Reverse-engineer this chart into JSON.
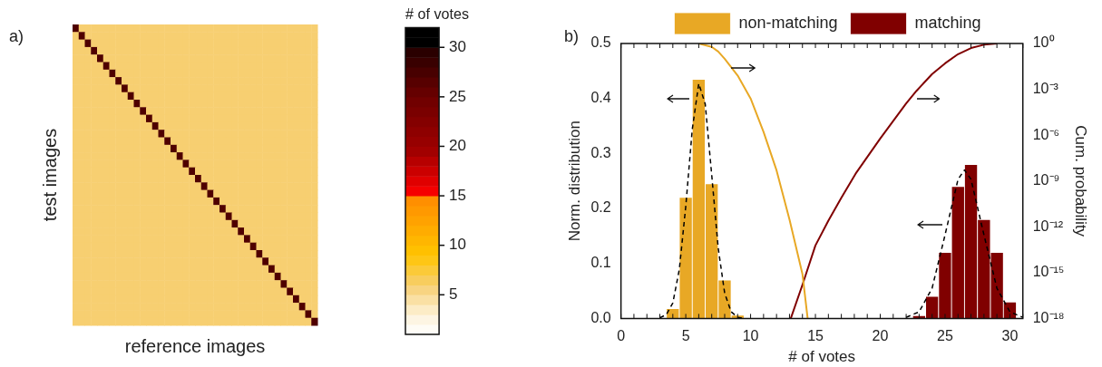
{
  "chart_data": [
    {
      "type": "heatmap",
      "title": "a)",
      "xlabel": "reference images",
      "ylabel": "test images",
      "clabel": "# of votes",
      "tick_labels": false,
      "categories": [
        null,
        null,
        null,
        null,
        null,
        null,
        null,
        null,
        null,
        null,
        null,
        null,
        null,
        null,
        null,
        null,
        null,
        null,
        null,
        null,
        null,
        null,
        null,
        null,
        null,
        null,
        null,
        null,
        null,
        null,
        null,
        null,
        null,
        null,
        null,
        null,
        null,
        null,
        null,
        null
      ],
      "y_categories": [
        null,
        null,
        null,
        null,
        null,
        null,
        null,
        null,
        null,
        null,
        null,
        null,
        null,
        null,
        null,
        null,
        null,
        null,
        null,
        null,
        null,
        null,
        null,
        null,
        null,
        null,
        null,
        null,
        null,
        null,
        null,
        null,
        null,
        null,
        null,
        null,
        null,
        null,
        null,
        null
      ],
      "cells": [
        [
          27,
          6,
          6,
          6,
          6,
          6,
          6,
          6,
          6,
          6,
          6,
          6,
          6,
          6,
          6,
          6,
          6,
          6,
          6,
          6,
          6,
          6,
          6,
          6,
          6,
          6,
          6,
          6,
          6,
          6,
          6,
          6,
          6,
          6,
          6,
          6,
          6,
          6,
          6,
          6
        ],
        [
          6,
          27,
          6,
          6,
          6,
          6,
          6,
          6,
          6,
          6,
          6,
          6,
          6,
          6,
          6,
          6,
          6,
          6,
          6,
          6,
          6,
          6,
          6,
          6,
          6,
          6,
          6,
          6,
          6,
          6,
          6,
          6,
          6,
          6,
          6,
          6,
          6,
          6,
          6,
          6
        ],
        [
          6,
          6,
          27,
          6,
          6,
          6,
          6,
          6,
          6,
          6,
          6,
          6,
          6,
          6,
          6,
          6,
          6,
          6,
          6,
          6,
          6,
          6,
          6,
          6,
          6,
          6,
          6,
          6,
          6,
          6,
          6,
          6,
          6,
          6,
          6,
          6,
          6,
          6,
          6,
          6
        ],
        [
          6,
          6,
          6,
          27,
          6,
          6,
          6,
          6,
          6,
          6,
          6,
          6,
          6,
          6,
          6,
          6,
          6,
          6,
          6,
          6,
          6,
          6,
          6,
          6,
          6,
          6,
          6,
          6,
          6,
          6,
          6,
          6,
          6,
          6,
          6,
          6,
          6,
          6,
          6,
          6
        ],
        [
          6,
          6,
          6,
          6,
          27,
          6,
          6,
          6,
          6,
          6,
          6,
          6,
          6,
          6,
          6,
          6,
          6,
          6,
          6,
          6,
          6,
          6,
          6,
          6,
          6,
          6,
          6,
          6,
          6,
          6,
          6,
          6,
          6,
          6,
          6,
          6,
          6,
          6,
          6,
          6
        ],
        [
          6,
          6,
          6,
          6,
          6,
          27,
          6,
          6,
          6,
          6,
          6,
          6,
          6,
          6,
          6,
          6,
          6,
          6,
          6,
          6,
          6,
          6,
          6,
          6,
          6,
          6,
          6,
          6,
          6,
          6,
          6,
          6,
          6,
          6,
          6,
          6,
          6,
          6,
          6,
          6
        ],
        [
          6,
          6,
          6,
          6,
          6,
          6,
          27,
          6,
          6,
          6,
          6,
          6,
          6,
          6,
          6,
          6,
          6,
          6,
          6,
          6,
          6,
          6,
          6,
          6,
          6,
          6,
          6,
          6,
          6,
          6,
          6,
          6,
          6,
          6,
          6,
          6,
          6,
          6,
          6,
          6
        ],
        [
          6,
          6,
          6,
          6,
          6,
          6,
          6,
          27,
          6,
          6,
          6,
          6,
          6,
          6,
          6,
          6,
          6,
          6,
          6,
          6,
          6,
          6,
          6,
          6,
          6,
          6,
          6,
          6,
          6,
          6,
          6,
          6,
          6,
          6,
          6,
          6,
          6,
          6,
          6,
          6
        ],
        [
          6,
          6,
          6,
          6,
          6,
          6,
          6,
          6,
          27,
          6,
          6,
          6,
          6,
          6,
          6,
          6,
          6,
          6,
          6,
          6,
          6,
          6,
          6,
          6,
          6,
          6,
          6,
          6,
          6,
          6,
          6,
          6,
          6,
          6,
          6,
          6,
          6,
          6,
          6,
          6
        ],
        [
          6,
          6,
          6,
          6,
          6,
          6,
          6,
          6,
          6,
          27,
          6,
          6,
          6,
          6,
          6,
          6,
          6,
          6,
          6,
          6,
          6,
          6,
          6,
          6,
          6,
          6,
          6,
          6,
          6,
          6,
          6,
          6,
          6,
          6,
          6,
          6,
          6,
          6,
          6,
          6
        ],
        [
          6,
          6,
          6,
          6,
          6,
          6,
          6,
          6,
          6,
          6,
          27,
          6,
          6,
          6,
          6,
          6,
          6,
          6,
          6,
          6,
          6,
          6,
          6,
          6,
          6,
          6,
          6,
          6,
          6,
          6,
          6,
          6,
          6,
          6,
          6,
          6,
          6,
          6,
          6,
          6
        ],
        [
          6,
          6,
          6,
          6,
          6,
          6,
          6,
          6,
          6,
          6,
          6,
          27,
          6,
          6,
          6,
          6,
          6,
          6,
          6,
          6,
          6,
          6,
          6,
          6,
          6,
          6,
          6,
          6,
          6,
          6,
          6,
          6,
          6,
          6,
          6,
          6,
          6,
          6,
          6,
          6
        ],
        [
          6,
          6,
          6,
          6,
          6,
          6,
          6,
          6,
          6,
          6,
          6,
          6,
          27,
          6,
          6,
          6,
          6,
          6,
          6,
          6,
          6,
          6,
          6,
          6,
          6,
          6,
          6,
          6,
          6,
          6,
          6,
          6,
          6,
          6,
          6,
          6,
          6,
          6,
          6,
          6
        ],
        [
          6,
          6,
          6,
          6,
          6,
          6,
          6,
          6,
          6,
          6,
          6,
          6,
          6,
          27,
          6,
          6,
          6,
          6,
          6,
          6,
          6,
          6,
          6,
          6,
          6,
          6,
          6,
          6,
          6,
          6,
          6,
          6,
          6,
          6,
          6,
          6,
          6,
          6,
          6,
          6
        ],
        [
          6,
          6,
          6,
          6,
          6,
          6,
          6,
          6,
          6,
          6,
          6,
          6,
          6,
          6,
          27,
          6,
          6,
          6,
          6,
          6,
          6,
          6,
          6,
          6,
          6,
          6,
          6,
          6,
          6,
          6,
          6,
          6,
          6,
          6,
          6,
          6,
          6,
          6,
          6,
          6
        ],
        [
          6,
          6,
          6,
          6,
          6,
          6,
          6,
          6,
          6,
          6,
          6,
          6,
          6,
          6,
          6,
          27,
          6,
          6,
          6,
          6,
          6,
          6,
          6,
          6,
          6,
          6,
          6,
          6,
          6,
          6,
          6,
          6,
          6,
          6,
          6,
          6,
          6,
          6,
          6,
          6
        ],
        [
          6,
          6,
          6,
          6,
          6,
          6,
          6,
          6,
          6,
          6,
          6,
          6,
          6,
          6,
          6,
          6,
          27,
          6,
          6,
          6,
          6,
          6,
          6,
          6,
          6,
          6,
          6,
          6,
          6,
          6,
          6,
          6,
          6,
          6,
          6,
          6,
          6,
          6,
          6,
          6
        ],
        [
          6,
          6,
          6,
          6,
          6,
          6,
          6,
          6,
          6,
          6,
          6,
          6,
          6,
          6,
          6,
          6,
          6,
          27,
          6,
          6,
          6,
          6,
          6,
          6,
          6,
          6,
          6,
          6,
          6,
          6,
          6,
          6,
          6,
          6,
          6,
          6,
          6,
          6,
          6,
          6
        ],
        [
          6,
          6,
          6,
          6,
          6,
          6,
          6,
          6,
          6,
          6,
          6,
          6,
          6,
          6,
          6,
          6,
          6,
          6,
          27,
          6,
          6,
          6,
          6,
          6,
          6,
          6,
          6,
          6,
          6,
          6,
          6,
          6,
          6,
          6,
          6,
          6,
          6,
          6,
          6,
          6
        ],
        [
          6,
          6,
          6,
          6,
          6,
          6,
          6,
          6,
          6,
          6,
          6,
          6,
          6,
          6,
          6,
          6,
          6,
          6,
          6,
          27,
          6,
          6,
          6,
          6,
          6,
          6,
          6,
          6,
          6,
          6,
          6,
          6,
          6,
          6,
          6,
          6,
          6,
          6,
          6,
          6
        ],
        [
          6,
          6,
          6,
          6,
          6,
          6,
          6,
          6,
          6,
          6,
          6,
          6,
          6,
          6,
          6,
          6,
          6,
          6,
          6,
          6,
          27,
          6,
          6,
          6,
          6,
          6,
          6,
          6,
          6,
          6,
          6,
          6,
          6,
          6,
          6,
          6,
          6,
          6,
          6,
          6
        ],
        [
          6,
          6,
          6,
          6,
          6,
          6,
          6,
          6,
          6,
          6,
          6,
          6,
          6,
          6,
          6,
          6,
          6,
          6,
          6,
          6,
          6,
          27,
          6,
          6,
          6,
          6,
          6,
          6,
          6,
          6,
          6,
          6,
          6,
          6,
          6,
          6,
          6,
          6,
          6,
          6
        ],
        [
          6,
          6,
          6,
          6,
          6,
          6,
          6,
          6,
          6,
          6,
          6,
          6,
          6,
          6,
          6,
          6,
          6,
          6,
          6,
          6,
          6,
          6,
          27,
          6,
          6,
          6,
          6,
          6,
          6,
          6,
          6,
          6,
          6,
          6,
          6,
          6,
          6,
          6,
          6,
          6
        ],
        [
          6,
          6,
          6,
          6,
          6,
          6,
          6,
          6,
          6,
          6,
          6,
          6,
          6,
          6,
          6,
          6,
          6,
          6,
          6,
          6,
          6,
          6,
          6,
          27,
          6,
          6,
          6,
          6,
          6,
          6,
          6,
          6,
          6,
          6,
          6,
          6,
          6,
          6,
          6,
          6
        ],
        [
          6,
          6,
          6,
          6,
          6,
          6,
          6,
          6,
          6,
          6,
          6,
          6,
          6,
          6,
          6,
          6,
          6,
          6,
          6,
          6,
          6,
          6,
          6,
          6,
          27,
          6,
          6,
          6,
          6,
          6,
          6,
          6,
          6,
          6,
          6,
          6,
          6,
          6,
          6,
          6
        ],
        [
          6,
          6,
          6,
          6,
          6,
          6,
          6,
          6,
          6,
          6,
          6,
          6,
          6,
          6,
          6,
          6,
          6,
          6,
          6,
          6,
          6,
          6,
          6,
          6,
          6,
          27,
          6,
          6,
          6,
          6,
          6,
          6,
          6,
          6,
          6,
          6,
          6,
          6,
          6,
          6
        ],
        [
          6,
          6,
          6,
          6,
          6,
          6,
          6,
          6,
          6,
          6,
          6,
          6,
          6,
          6,
          6,
          6,
          6,
          6,
          6,
          6,
          6,
          6,
          6,
          6,
          6,
          6,
          27,
          6,
          6,
          6,
          6,
          6,
          6,
          6,
          6,
          6,
          6,
          6,
          6,
          6
        ],
        [
          6,
          6,
          6,
          6,
          6,
          6,
          6,
          6,
          6,
          6,
          6,
          6,
          6,
          6,
          6,
          6,
          6,
          6,
          6,
          6,
          6,
          6,
          6,
          6,
          6,
          6,
          6,
          27,
          6,
          6,
          6,
          6,
          6,
          6,
          6,
          6,
          6,
          6,
          6,
          6
        ],
        [
          6,
          6,
          6,
          6,
          6,
          6,
          6,
          6,
          6,
          6,
          6,
          6,
          6,
          6,
          6,
          6,
          6,
          6,
          6,
          6,
          6,
          6,
          6,
          6,
          6,
          6,
          6,
          6,
          27,
          6,
          6,
          6,
          6,
          6,
          6,
          6,
          6,
          6,
          6,
          6
        ],
        [
          6,
          6,
          6,
          6,
          6,
          6,
          6,
          6,
          6,
          6,
          6,
          6,
          6,
          6,
          6,
          6,
          6,
          6,
          6,
          6,
          6,
          6,
          6,
          6,
          6,
          6,
          6,
          6,
          6,
          27,
          6,
          6,
          6,
          6,
          6,
          6,
          6,
          6,
          6,
          6
        ],
        [
          6,
          6,
          6,
          6,
          6,
          6,
          6,
          6,
          6,
          6,
          6,
          6,
          6,
          6,
          6,
          6,
          6,
          6,
          6,
          6,
          6,
          6,
          6,
          6,
          6,
          6,
          6,
          6,
          6,
          6,
          27,
          6,
          6,
          6,
          6,
          6,
          6,
          6,
          6,
          6
        ],
        [
          6,
          6,
          6,
          6,
          6,
          6,
          6,
          6,
          6,
          6,
          6,
          6,
          6,
          6,
          6,
          6,
          6,
          6,
          6,
          6,
          6,
          6,
          6,
          6,
          6,
          6,
          6,
          6,
          6,
          6,
          6,
          27,
          6,
          6,
          6,
          6,
          6,
          6,
          6,
          6
        ],
        [
          6,
          6,
          6,
          6,
          6,
          6,
          6,
          6,
          6,
          6,
          6,
          6,
          6,
          6,
          6,
          6,
          6,
          6,
          6,
          6,
          6,
          6,
          6,
          6,
          6,
          6,
          6,
          6,
          6,
          6,
          6,
          6,
          27,
          6,
          6,
          6,
          6,
          6,
          6,
          6
        ],
        [
          6,
          6,
          6,
          6,
          6,
          6,
          6,
          6,
          6,
          6,
          6,
          6,
          6,
          6,
          6,
          6,
          6,
          6,
          6,
          6,
          6,
          6,
          6,
          6,
          6,
          6,
          6,
          6,
          6,
          6,
          6,
          6,
          6,
          27,
          6,
          6,
          6,
          6,
          6,
          6
        ],
        [
          6,
          6,
          6,
          6,
          6,
          6,
          6,
          6,
          6,
          6,
          6,
          6,
          6,
          6,
          6,
          6,
          6,
          6,
          6,
          6,
          6,
          6,
          6,
          6,
          6,
          6,
          6,
          6,
          6,
          6,
          6,
          6,
          6,
          6,
          27,
          6,
          6,
          6,
          6,
          6
        ],
        [
          6,
          6,
          6,
          6,
          6,
          6,
          6,
          6,
          6,
          6,
          6,
          6,
          6,
          6,
          6,
          6,
          6,
          6,
          6,
          6,
          6,
          6,
          6,
          6,
          6,
          6,
          6,
          6,
          6,
          6,
          6,
          6,
          6,
          6,
          6,
          27,
          6,
          6,
          6,
          6
        ],
        [
          6,
          6,
          6,
          6,
          6,
          6,
          6,
          6,
          6,
          6,
          6,
          6,
          6,
          6,
          6,
          6,
          6,
          6,
          6,
          6,
          6,
          6,
          6,
          6,
          6,
          6,
          6,
          6,
          6,
          6,
          6,
          6,
          6,
          6,
          6,
          6,
          27,
          6,
          6,
          6
        ],
        [
          6,
          6,
          6,
          6,
          6,
          6,
          6,
          6,
          6,
          6,
          6,
          6,
          6,
          6,
          6,
          6,
          6,
          6,
          6,
          6,
          6,
          6,
          6,
          6,
          6,
          6,
          6,
          6,
          6,
          6,
          6,
          6,
          6,
          6,
          6,
          6,
          6,
          27,
          6,
          6
        ],
        [
          6,
          6,
          6,
          6,
          6,
          6,
          6,
          6,
          6,
          6,
          6,
          6,
          6,
          6,
          6,
          6,
          6,
          6,
          6,
          6,
          6,
          6,
          6,
          6,
          6,
          6,
          6,
          6,
          6,
          6,
          6,
          6,
          6,
          6,
          6,
          6,
          6,
          6,
          27,
          6
        ],
        [
          6,
          6,
          6,
          6,
          6,
          6,
          6,
          6,
          6,
          6,
          6,
          6,
          6,
          6,
          6,
          6,
          6,
          6,
          6,
          6,
          6,
          6,
          6,
          6,
          6,
          6,
          6,
          6,
          6,
          6,
          6,
          6,
          6,
          6,
          6,
          6,
          6,
          6,
          6,
          27
        ]
      ],
      "clim": [
        1,
        32
      ],
      "cticks": [
        5,
        10,
        15,
        20,
        25,
        30
      ]
    },
    {
      "type": "histogram",
      "title": "b)",
      "xlabel": "# of votes",
      "ylabel": "Norm. distribution",
      "y2label": "Cum. probability",
      "legend": "top",
      "grid": false,
      "log": "y2",
      "xlim": [
        0,
        31
      ],
      "xticks": [
        0,
        5,
        10,
        15,
        20,
        25,
        30
      ],
      "ylim": [
        0,
        0.5
      ],
      "yticks": [
        {
          "value": 0,
          "label": "0.0"
        },
        {
          "value": 0.1,
          "label": "0.1"
        },
        {
          "value": 0.2,
          "label": "0.2"
        },
        {
          "value": 0.3,
          "label": "0.3"
        },
        {
          "value": 0.4,
          "label": "0.4"
        },
        {
          "value": 0.5,
          "label": "0.5"
        }
      ],
      "y2lim": [
        1e-18,
        1
      ],
      "y2ticks": [
        {
          "value": 1,
          "label": "10⁰"
        },
        {
          "value": 0.001,
          "label": "10⁻³"
        },
        {
          "value": 1e-06,
          "label": "10⁻⁶"
        },
        {
          "value": 1e-09,
          "label": "10⁻⁹"
        },
        {
          "value": 1e-12,
          "label": "10⁻¹²"
        },
        {
          "value": 1e-15,
          "label": "10⁻¹⁵"
        },
        {
          "value": 1e-18,
          "label": "10⁻¹⁸"
        }
      ],
      "series": [
        {
          "name": "non-matching",
          "color": "#e8a825",
          "bins": [
            3.5,
            4.5,
            5.5,
            6.5,
            7.5,
            8.5,
            9.5
          ],
          "values": [
            0.018,
            0.22,
            0.435,
            0.245,
            0.07,
            0.006
          ]
        },
        {
          "name": "matching",
          "color": "#800000",
          "bins": [
            22.5,
            23.5,
            24.5,
            25.5,
            26.5,
            27.5,
            28.5,
            29.5,
            30.5
          ],
          "values": [
            0.005,
            0.04,
            0.12,
            0.24,
            0.28,
            0.18,
            0.12,
            0.03
          ]
        },
        {
          "type": "line",
          "color": "#000000",
          "line_style": "dashed",
          "marker": "none",
          "x": [
            3,
            3.5,
            4,
            4.5,
            5,
            5.5,
            6,
            6.5,
            7,
            7.5,
            8,
            8.5,
            9,
            9.5
          ],
          "values": [
            0.001,
            0.007,
            0.028,
            0.089,
            0.204,
            0.344,
            0.427,
            0.39,
            0.261,
            0.128,
            0.046,
            0.012,
            0.002,
            0
          ]
        },
        {
          "type": "line",
          "color": "#000000",
          "line_style": "dashed",
          "marker": "none",
          "x": [
            22,
            23,
            24,
            25,
            26,
            26.5,
            27,
            28,
            29,
            30,
            31
          ],
          "values": [
            0.002,
            0.012,
            0.055,
            0.152,
            0.253,
            0.27,
            0.253,
            0.152,
            0.055,
            0.012,
            0.002
          ]
        },
        {
          "type": "line",
          "axis": "y2",
          "color": "#e8a825",
          "line_style": "solid",
          "marker": "none",
          "x": [
            6,
            7,
            7.5,
            8,
            9,
            10,
            11,
            12,
            13,
            14,
            14.4
          ],
          "values": [
            1,
            0.6,
            0.3,
            0.1,
            0.008,
            0.00025,
            1.6e-06,
            5e-09,
            3e-12,
            8e-16,
            1e-18
          ]
        },
        {
          "type": "line",
          "axis": "y2",
          "color": "#800000",
          "line_style": "solid",
          "marker": "none",
          "x": [
            13.1,
            14,
            15,
            16,
            17,
            18.1,
            20,
            22,
            22.8,
            24,
            25,
            26,
            27,
            28,
            29
          ],
          "values": [
            1e-18,
            1.6e-16,
            6e-14,
            2.5e-12,
            8e-11,
            3e-09,
            6e-07,
            0.00012,
            0.0008,
            0.01,
            0.05,
            0.2,
            0.5,
            0.83,
            1
          ]
        }
      ]
    }
  ]
}
